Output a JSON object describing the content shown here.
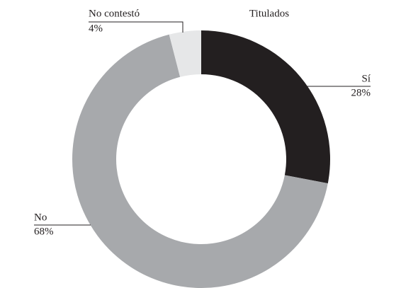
{
  "chart_data": {
    "type": "donut",
    "title": "Titulados",
    "categories": [
      "Sí",
      "No",
      "No contestó"
    ],
    "values": [
      28,
      68,
      4
    ],
    "value_labels": [
      "28%",
      "68%",
      "4%"
    ],
    "colors": [
      "#231f20",
      "#a7a9ac",
      "#e6e7e8"
    ]
  }
}
